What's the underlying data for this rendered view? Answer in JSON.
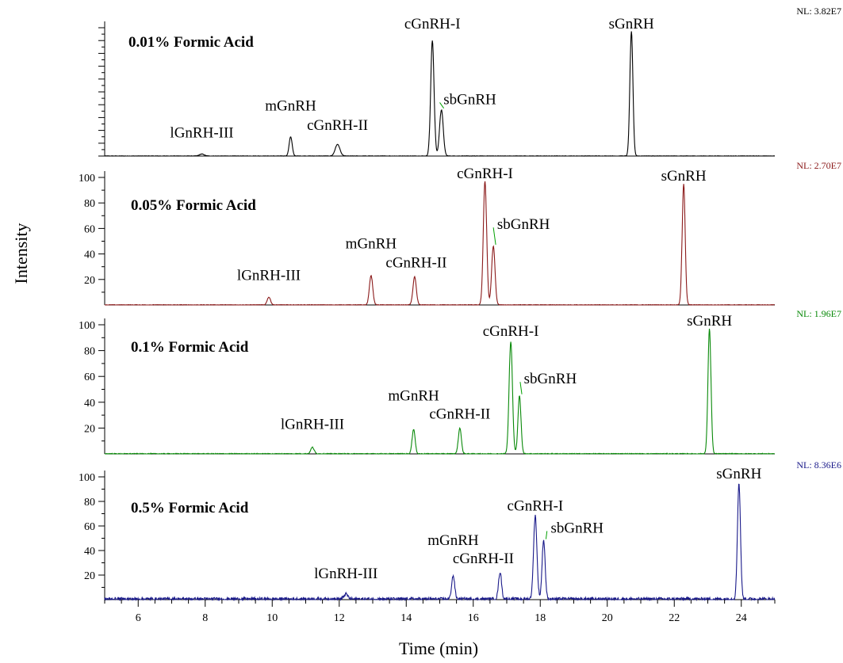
{
  "chart_data": {
    "type": "line",
    "xlabel": "Time (min)",
    "ylabel": "Intensity",
    "xlim": [
      5,
      25
    ],
    "x_ticks": [
      6,
      8,
      10,
      12,
      14,
      16,
      18,
      20,
      22,
      24
    ],
    "grid": false,
    "panels": [
      {
        "condition": "0.01% Formic Acid",
        "nl": "NL: 3.82E7",
        "color": "#000000",
        "show_y_labels": false,
        "ylim": [
          0,
          100
        ],
        "y_ticks": [],
        "noise": 0.3,
        "peaks": [
          {
            "t": 7.9,
            "h": 1.5,
            "w": 0.07
          },
          {
            "t": 10.55,
            "h": 15,
            "w": 0.045
          },
          {
            "t": 11.95,
            "h": 9,
            "w": 0.07
          },
          {
            "t": 14.78,
            "h": 90,
            "w": 0.05
          },
          {
            "t": 15.05,
            "h": 36,
            "w": 0.055
          },
          {
            "t": 20.72,
            "h": 97,
            "w": 0.045
          }
        ],
        "labels": [
          {
            "text": "lGnRH-III",
            "x": 7.9,
            "y": 12
          },
          {
            "text": "mGnRH",
            "x": 10.55,
            "y": 33
          },
          {
            "text": "cGnRH-II",
            "x": 11.95,
            "y": 18
          },
          {
            "text": "cGnRH-I",
            "x": 14.78,
            "y": 97
          },
          {
            "text": "sbGnRH",
            "x": 15.9,
            "y": 38
          },
          {
            "text": "sGnRH",
            "x": 20.72,
            "y": 97
          }
        ]
      },
      {
        "condition": "0.05% Formic Acid",
        "nl": "NL: 2.70E7",
        "color": "#8b1a1a",
        "show_y_labels": true,
        "ylim": [
          0,
          100
        ],
        "y_ticks": [
          20,
          40,
          60,
          80,
          100
        ],
        "noise": 0.4,
        "peaks": [
          {
            "t": 9.9,
            "h": 6,
            "w": 0.05
          },
          {
            "t": 12.95,
            "h": 23,
            "w": 0.05
          },
          {
            "t": 14.25,
            "h": 22,
            "w": 0.05
          },
          {
            "t": 16.35,
            "h": 97,
            "w": 0.05
          },
          {
            "t": 16.6,
            "h": 46,
            "w": 0.05
          },
          {
            "t": 22.28,
            "h": 95,
            "w": 0.045
          }
        ],
        "labels": [
          {
            "text": "lGnRH-III",
            "x": 9.9,
            "y": 17
          },
          {
            "text": "mGnRH",
            "x": 12.95,
            "y": 42
          },
          {
            "text": "cGnRH-II",
            "x": 14.3,
            "y": 27
          },
          {
            "text": "cGnRH-I",
            "x": 16.35,
            "y": 97
          },
          {
            "text": "sbGnRH",
            "x": 17.5,
            "y": 57
          },
          {
            "text": "sGnRH",
            "x": 22.28,
            "y": 95
          }
        ]
      },
      {
        "condition": "0.1% Formic Acid",
        "nl": "NL: 1.96E7",
        "color": "#0a8a0a",
        "show_y_labels": true,
        "ylim": [
          0,
          100
        ],
        "y_ticks": [
          20,
          40,
          60,
          80,
          100
        ],
        "noise": 0.6,
        "peaks": [
          {
            "t": 11.2,
            "h": 5,
            "w": 0.05
          },
          {
            "t": 14.22,
            "h": 19,
            "w": 0.045
          },
          {
            "t": 15.6,
            "h": 20,
            "w": 0.045
          },
          {
            "t": 17.12,
            "h": 87,
            "w": 0.05
          },
          {
            "t": 17.38,
            "h": 45,
            "w": 0.045
          },
          {
            "t": 23.05,
            "h": 97,
            "w": 0.045
          }
        ],
        "labels": [
          {
            "text": "lGnRH-III",
            "x": 11.2,
            "y": 17
          },
          {
            "text": "mGnRH",
            "x": 14.22,
            "y": 39
          },
          {
            "text": "cGnRH-II",
            "x": 15.6,
            "y": 25
          },
          {
            "text": "cGnRH-I",
            "x": 17.12,
            "y": 89
          },
          {
            "text": "sbGnRH",
            "x": 18.3,
            "y": 52
          },
          {
            "text": "sGnRH",
            "x": 23.05,
            "y": 97
          }
        ]
      },
      {
        "condition": "0.5% Formic Acid",
        "nl": "NL: 8.36E6",
        "color": "#1a1a8a",
        "show_y_labels": true,
        "ylim": [
          0,
          100
        ],
        "y_ticks": [
          20,
          40,
          60,
          80,
          100
        ],
        "noise": 2.5,
        "peaks": [
          {
            "t": 12.2,
            "h": 4,
            "w": 0.06
          },
          {
            "t": 15.4,
            "h": 19,
            "w": 0.045
          },
          {
            "t": 16.8,
            "h": 22,
            "w": 0.045
          },
          {
            "t": 17.85,
            "h": 68,
            "w": 0.05
          },
          {
            "t": 18.1,
            "h": 48,
            "w": 0.045
          },
          {
            "t": 23.93,
            "h": 94,
            "w": 0.045
          }
        ],
        "labels": [
          {
            "text": "lGnRH-III",
            "x": 12.2,
            "y": 15
          },
          {
            "text": "mGnRH",
            "x": 15.4,
            "y": 42
          },
          {
            "text": "cGnRH-II",
            "x": 16.3,
            "y": 27
          },
          {
            "text": "cGnRH-I",
            "x": 17.85,
            "y": 70
          },
          {
            "text": "sbGnRH",
            "x": 19.1,
            "y": 52
          },
          {
            "text": "sGnRH",
            "x": 23.93,
            "y": 96
          }
        ]
      }
    ]
  }
}
